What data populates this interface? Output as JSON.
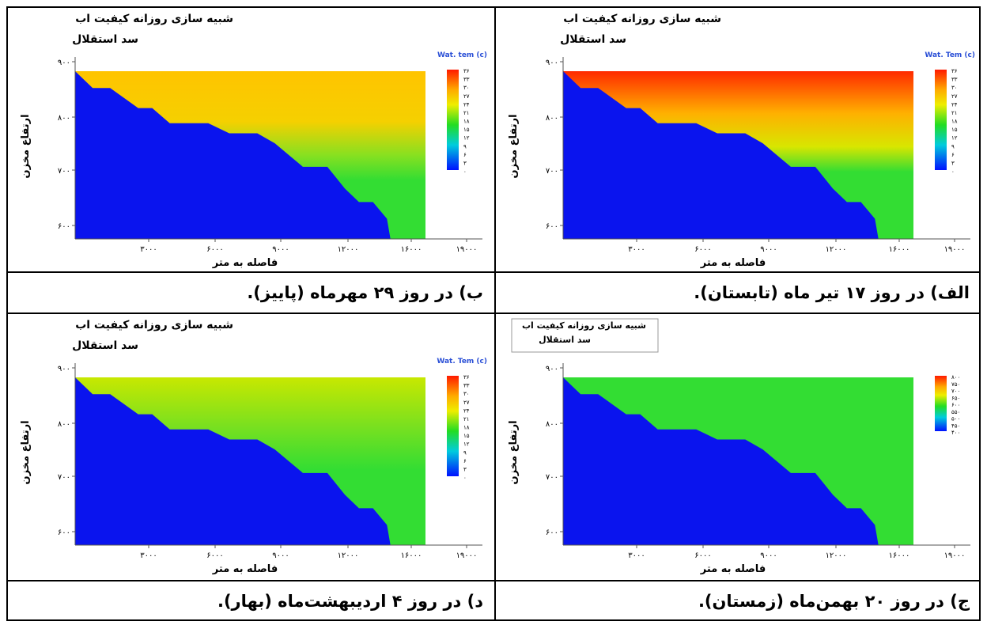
{
  "panels": [
    {
      "title_line1": "شبیه سازی روزانه کیفیت اب",
      "title_line2": "سد استقلال",
      "y_label": "ارتفاع مخزن",
      "x_label": "فاصله به متر",
      "yticks": [
        "۹۰۰",
        "۸۰۰",
        "۷۰۰",
        "۶۰۰"
      ],
      "xticks": [
        "۳۰۰۰",
        "۶۰۰۰",
        "۹۰۰۰",
        "۱۲۰۰۰",
        "۱۶۰۰۰",
        "۱۹۰۰۰"
      ],
      "legend_title": "Wat. Tem (c)",
      "legend_labels": [
        "۳۶",
        "۳۳",
        "۳۰",
        "۲۷",
        "۲۴",
        "۲۱",
        "۱۸",
        "۱۵",
        "۱۲",
        "۹",
        "۶",
        "۳",
        "۰"
      ],
      "caption": "الف) در روز ۱۷ تیر ماه (تابستان)."
    },
    {
      "title_line1": "شبیه سازی روزانه کیفیت اب",
      "title_line2": "سد استقلال",
      "y_label": "ارتفاع مخزن",
      "x_label": "فاصله به متر",
      "yticks": [
        "۹۰۰",
        "۸۰۰",
        "۷۰۰",
        "۶۰۰"
      ],
      "xticks": [
        "۳۰۰۰",
        "۶۰۰۰",
        "۹۰۰۰",
        "۱۲۰۰۰",
        "۱۶۰۰۰",
        "۱۹۰۰۰"
      ],
      "legend_title": "Wat. tem (c)",
      "legend_labels": [
        "۳۶",
        "۳۳",
        "۳۰",
        "۲۷",
        "۲۴",
        "۲۱",
        "۱۸",
        "۱۵",
        "۱۲",
        "۹",
        "۶",
        "۳",
        "۰"
      ],
      "caption": "ب)  در روز ۲۹ مهرماه (پاییز)."
    },
    {
      "title_line1": "شبیه سازی روزانه کیفیت اب",
      "title_line2": "سد استقلال",
      "y_label": "ارتفاع مخزن",
      "x_label": "فاصله به متر",
      "yticks": [
        "۹۰۰",
        "۸۰۰",
        "۷۰۰",
        "۶۰۰"
      ],
      "xticks": [
        "۳۰۰۰",
        "۶۰۰۰",
        "۹۰۰۰",
        "۱۲۰۰۰",
        "۱۶۰۰۰",
        "۱۹۰۰۰"
      ],
      "legend_labels": [
        "۸۰۰",
        "۷۵۰",
        "۷۰۰",
        "۶۵۰",
        "۶۰۰",
        "۵۵۰",
        "۵۰۰",
        "۴۵۰",
        "۴۰۰"
      ],
      "caption": "ج) در روز ۲۰ بهمن‌ماه (زمستان)."
    },
    {
      "title_line1": "شبیه سازی روزانه کیفیت اب",
      "title_line2": "سد استقلال",
      "y_label": "ارتفاع مخزن",
      "x_label": "فاصله به متر",
      "yticks": [
        "۹۰۰",
        "۸۰۰",
        "۷۰۰",
        "۶۰۰"
      ],
      "xticks": [
        "۳۰۰۰",
        "۶۰۰۰",
        "۹۰۰۰",
        "۱۲۰۰۰",
        "۱۶۰۰۰",
        "۱۹۰۰۰"
      ],
      "legend_title": "Wat. Tem (c)",
      "legend_labels": [
        "۳۶",
        "۳۳",
        "۳۰",
        "۲۷",
        "۲۴",
        "۲۱",
        "۱۸",
        "۱۵",
        "۱۲",
        "۹",
        "۶",
        "۳",
        "۰"
      ],
      "caption": "د) در روز ۴ اردیبهشت‌ماه (بهار)."
    }
  ]
}
